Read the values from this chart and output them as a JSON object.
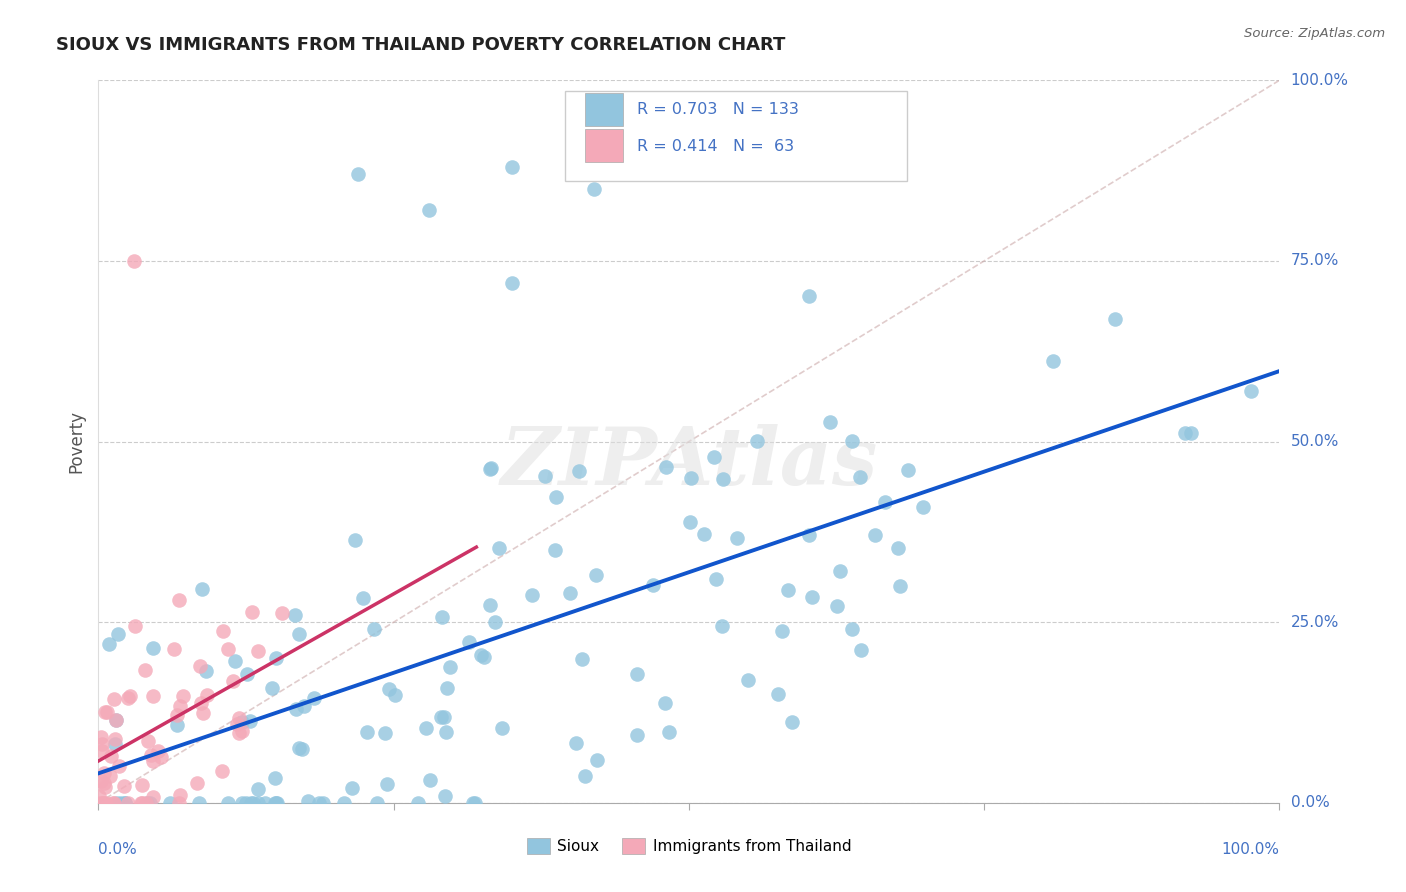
{
  "title": "SIOUX VS IMMIGRANTS FROM THAILAND POVERTY CORRELATION CHART",
  "source": "Source: ZipAtlas.com",
  "ylabel": "Poverty",
  "ytick_labels": [
    "0.0%",
    "25.0%",
    "50.0%",
    "75.0%",
    "100.0%"
  ],
  "legend_label_blue": "Sioux",
  "legend_label_pink": "Immigrants from Thailand",
  "blue_color": "#92c5de",
  "pink_color": "#f4a9b8",
  "trendline_blue": "#1155cc",
  "trendline_pink": "#cc3366",
  "ref_line_color": "#bbbbbb",
  "watermark": "ZIPAtlas",
  "watermark_color": "#dddddd",
  "background_color": "#ffffff",
  "grid_color": "#cccccc",
  "label_color": "#4472c4",
  "source_color": "#666666",
  "title_color": "#222222",
  "n_blue": 133,
  "n_pink": 63,
  "r_blue": 0.703,
  "r_pink": 0.414
}
